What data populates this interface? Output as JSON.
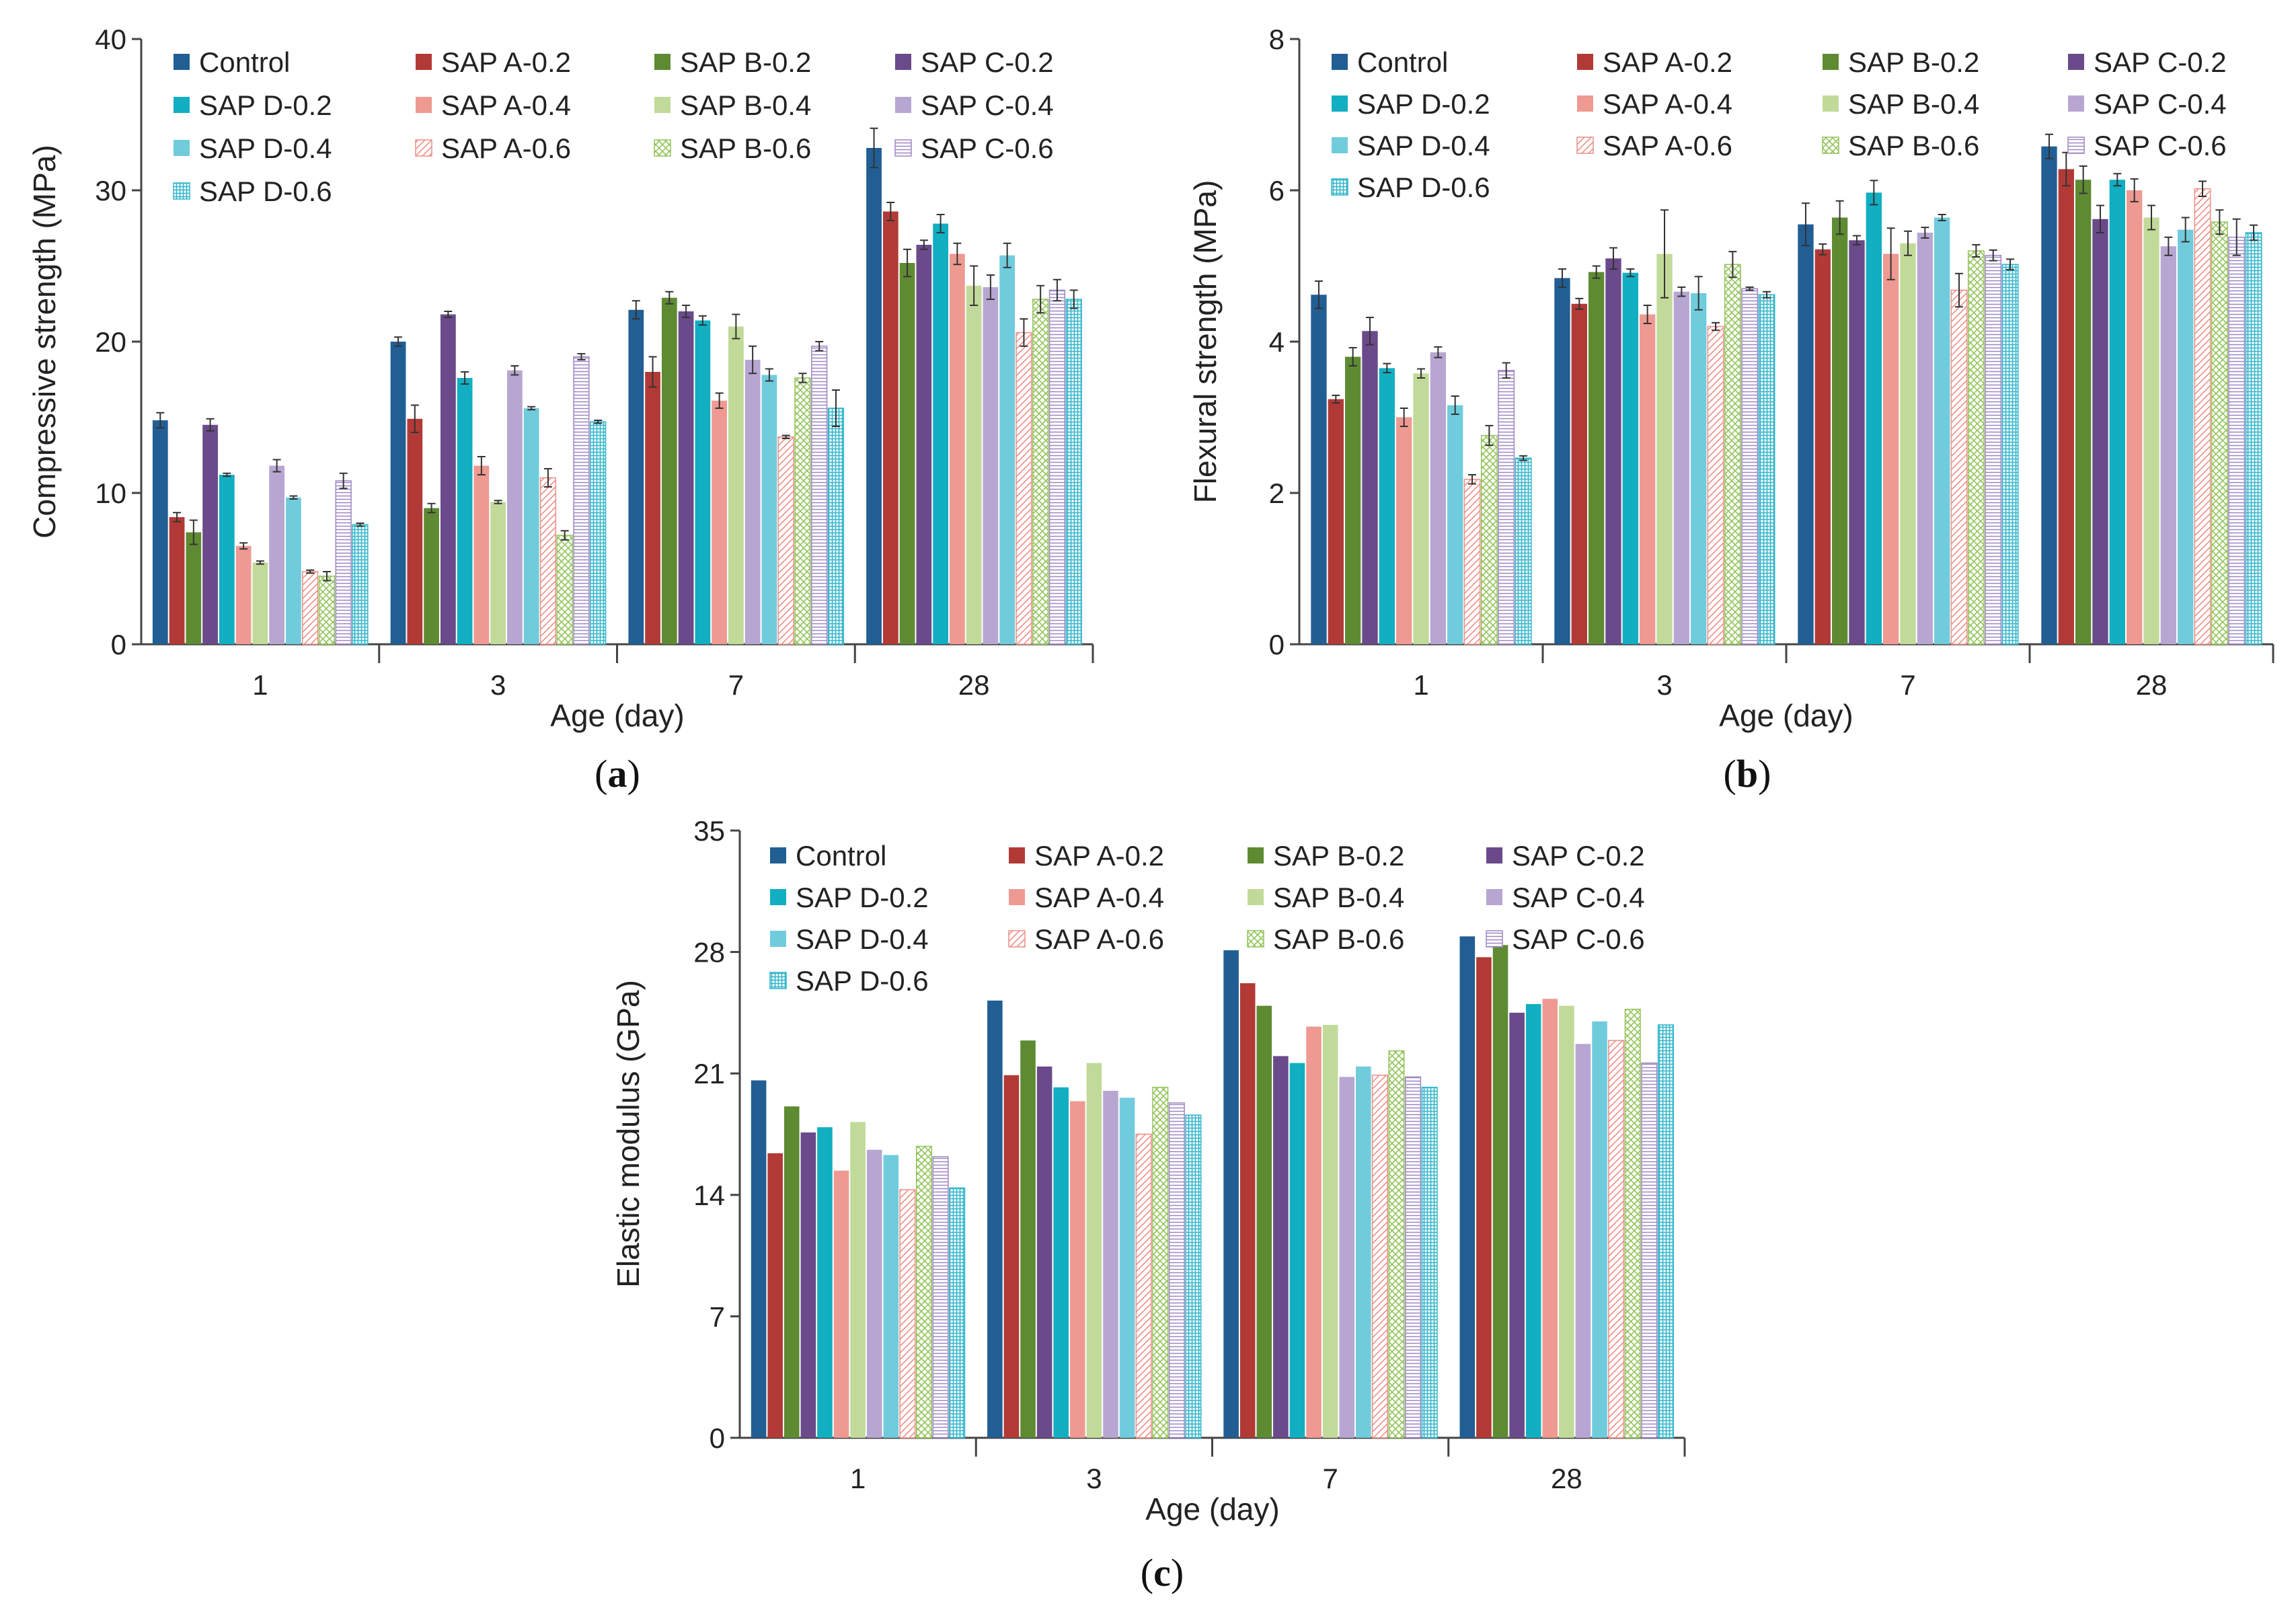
{
  "series_styles": [
    {
      "name": "Control",
      "color": "#215E94",
      "pattern": "solid"
    },
    {
      "name": "SAP A-0.2",
      "color": "#B23A36",
      "pattern": "solid"
    },
    {
      "name": "SAP B-0.2",
      "color": "#5E8B32",
      "pattern": "solid"
    },
    {
      "name": "SAP C-0.2",
      "color": "#6A4A8A",
      "pattern": "solid"
    },
    {
      "name": "SAP D-0.2",
      "color": "#12AEC2",
      "pattern": "solid"
    },
    {
      "name": "SAP A-0.4",
      "color": "#EE9A92",
      "pattern": "solid"
    },
    {
      "name": "SAP B-0.4",
      "color": "#C2DA99",
      "pattern": "solid"
    },
    {
      "name": "SAP C-0.4",
      "color": "#B8A6D2",
      "pattern": "solid"
    },
    {
      "name": "SAP D-0.4",
      "color": "#70CCDC",
      "pattern": "solid"
    },
    {
      "name": "SAP A-0.6",
      "color": "#EE8E86",
      "pattern": "diag"
    },
    {
      "name": "SAP B-0.6",
      "color": "#93C45A",
      "pattern": "cross"
    },
    {
      "name": "SAP C-0.6",
      "color": "#9E86C2",
      "pattern": "horiz"
    },
    {
      "name": "SAP D-0.6",
      "color": "#2FB5CA",
      "pattern": "grid"
    }
  ],
  "chart_data": [
    {
      "type": "bar",
      "caption": "a",
      "xlabel": "Age (day)",
      "ylabel": "Compressive strength (MPa)",
      "ylim": [
        0,
        40
      ],
      "yticks": [
        "0",
        "10",
        "20",
        "30",
        "40"
      ],
      "categories": [
        "1",
        "3",
        "7",
        "28"
      ],
      "series": [
        {
          "name": "Control",
          "values": [
            14.8,
            20.0,
            22.1,
            32.8
          ],
          "errors": [
            0.5,
            0.3,
            0.6,
            1.3
          ]
        },
        {
          "name": "SAP A-0.2",
          "values": [
            8.4,
            14.9,
            18.0,
            28.6
          ],
          "errors": [
            0.3,
            0.9,
            1.0,
            0.6
          ]
        },
        {
          "name": "SAP B-0.2",
          "values": [
            7.4,
            9.0,
            22.9,
            25.2
          ],
          "errors": [
            0.8,
            0.3,
            0.4,
            0.9
          ]
        },
        {
          "name": "SAP C-0.2",
          "values": [
            14.5,
            21.8,
            22.0,
            26.4
          ],
          "errors": [
            0.4,
            0.2,
            0.4,
            0.3
          ]
        },
        {
          "name": "SAP D-0.2",
          "values": [
            11.2,
            17.6,
            21.4,
            27.8
          ],
          "errors": [
            0.1,
            0.4,
            0.3,
            0.6
          ]
        },
        {
          "name": "SAP A-0.4",
          "values": [
            6.5,
            11.8,
            16.1,
            25.8
          ],
          "errors": [
            0.2,
            0.6,
            0.5,
            0.7
          ]
        },
        {
          "name": "SAP B-0.4",
          "values": [
            5.4,
            9.4,
            21.0,
            23.7
          ],
          "errors": [
            0.1,
            0.1,
            0.8,
            1.3
          ]
        },
        {
          "name": "SAP C-0.4",
          "values": [
            11.8,
            18.1,
            18.8,
            23.6
          ],
          "errors": [
            0.4,
            0.3,
            0.9,
            0.8
          ]
        },
        {
          "name": "SAP D-0.4",
          "values": [
            9.7,
            15.6,
            17.8,
            25.7
          ],
          "errors": [
            0.1,
            0.1,
            0.4,
            0.8
          ]
        },
        {
          "name": "SAP A-0.6",
          "values": [
            4.8,
            11.0,
            13.7,
            20.6
          ],
          "errors": [
            0.1,
            0.6,
            0.1,
            0.9
          ]
        },
        {
          "name": "SAP B-0.6",
          "values": [
            4.5,
            7.2,
            17.6,
            22.8
          ],
          "errors": [
            0.3,
            0.3,
            0.3,
            0.9
          ]
        },
        {
          "name": "SAP C-0.6",
          "values": [
            10.8,
            19.0,
            19.7,
            23.4
          ],
          "errors": [
            0.5,
            0.2,
            0.3,
            0.7
          ]
        },
        {
          "name": "SAP D-0.6",
          "values": [
            7.9,
            14.7,
            15.6,
            22.8
          ],
          "errors": [
            0.1,
            0.1,
            1.2,
            0.6
          ]
        }
      ]
    },
    {
      "type": "bar",
      "caption": "b",
      "xlabel": "Age (day)",
      "ylabel": "Flexural strength (MPa)",
      "ylim": [
        0,
        8
      ],
      "yticks": [
        "0",
        "2",
        "4",
        "6",
        "8"
      ],
      "categories": [
        "1",
        "3",
        "7",
        "28"
      ],
      "series": [
        {
          "name": "Control",
          "values": [
            4.62,
            4.84,
            5.55,
            6.58
          ],
          "errors": [
            0.18,
            0.12,
            0.28,
            0.16
          ]
        },
        {
          "name": "SAP A-0.2",
          "values": [
            3.24,
            4.5,
            5.22,
            6.28
          ],
          "errors": [
            0.05,
            0.07,
            0.07,
            0.22
          ]
        },
        {
          "name": "SAP B-0.2",
          "values": [
            3.8,
            4.92,
            5.64,
            6.14
          ],
          "errors": [
            0.12,
            0.08,
            0.22,
            0.18
          ]
        },
        {
          "name": "SAP C-0.2",
          "values": [
            4.14,
            5.1,
            5.34,
            5.62
          ],
          "errors": [
            0.18,
            0.14,
            0.06,
            0.18
          ]
        },
        {
          "name": "SAP D-0.2",
          "values": [
            3.65,
            4.91,
            5.97,
            6.14
          ],
          "errors": [
            0.06,
            0.05,
            0.16,
            0.08
          ]
        },
        {
          "name": "SAP A-0.4",
          "values": [
            3.0,
            4.36,
            5.16,
            6.0
          ],
          "errors": [
            0.12,
            0.12,
            0.34,
            0.15
          ]
        },
        {
          "name": "SAP B-0.4",
          "values": [
            3.58,
            5.16,
            5.3,
            5.64
          ],
          "errors": [
            0.06,
            0.58,
            0.16,
            0.16
          ]
        },
        {
          "name": "SAP C-0.4",
          "values": [
            3.86,
            4.66,
            5.44,
            5.26
          ],
          "errors": [
            0.07,
            0.06,
            0.07,
            0.12
          ]
        },
        {
          "name": "SAP D-0.4",
          "values": [
            3.16,
            4.64,
            5.64,
            5.48
          ],
          "errors": [
            0.12,
            0.22,
            0.04,
            0.16
          ]
        },
        {
          "name": "SAP A-0.6",
          "values": [
            2.18,
            4.2,
            4.68,
            6.02
          ],
          "errors": [
            0.06,
            0.05,
            0.22,
            0.1
          ]
        },
        {
          "name": "SAP B-0.6",
          "values": [
            2.76,
            5.02,
            5.2,
            5.58
          ],
          "errors": [
            0.13,
            0.17,
            0.08,
            0.16
          ]
        },
        {
          "name": "SAP C-0.6",
          "values": [
            3.62,
            4.7,
            5.14,
            5.38
          ],
          "errors": [
            0.1,
            0.02,
            0.07,
            0.24
          ]
        },
        {
          "name": "SAP D-0.6",
          "values": [
            2.46,
            4.62,
            5.02,
            5.44
          ],
          "errors": [
            0.03,
            0.04,
            0.07,
            0.1
          ]
        }
      ]
    },
    {
      "type": "bar",
      "caption": "c",
      "xlabel": "Age (day)",
      "ylabel": "Elastic modulus (GPa)",
      "ylim": [
        0,
        35
      ],
      "yticks": [
        "0",
        "7",
        "14",
        "21",
        "28",
        "35"
      ],
      "categories": [
        "1",
        "3",
        "7",
        "28"
      ],
      "series": [
        {
          "name": "Control",
          "values": [
            20.6,
            25.2,
            28.1,
            28.9
          ]
        },
        {
          "name": "SAP A-0.2",
          "values": [
            16.4,
            20.9,
            26.2,
            27.7
          ]
        },
        {
          "name": "SAP B-0.2",
          "values": [
            19.1,
            22.9,
            24.9,
            28.4
          ]
        },
        {
          "name": "SAP C-0.2",
          "values": [
            17.6,
            21.4,
            22.0,
            24.5
          ]
        },
        {
          "name": "SAP D-0.2",
          "values": [
            17.9,
            20.2,
            21.6,
            25.0
          ]
        },
        {
          "name": "SAP A-0.4",
          "values": [
            15.4,
            19.4,
            23.7,
            25.3
          ]
        },
        {
          "name": "SAP B-0.4",
          "values": [
            18.2,
            21.6,
            23.8,
            24.9
          ]
        },
        {
          "name": "SAP C-0.4",
          "values": [
            16.6,
            20.0,
            20.8,
            22.7
          ]
        },
        {
          "name": "SAP D-0.4",
          "values": [
            16.3,
            19.6,
            21.4,
            24.0
          ]
        },
        {
          "name": "SAP A-0.6",
          "values": [
            14.3,
            17.5,
            20.9,
            22.9
          ]
        },
        {
          "name": "SAP B-0.6",
          "values": [
            16.8,
            20.2,
            22.3,
            24.7
          ]
        },
        {
          "name": "SAP C-0.6",
          "values": [
            16.2,
            19.3,
            20.8,
            21.6
          ]
        },
        {
          "name": "SAP D-0.6",
          "values": [
            14.4,
            18.6,
            20.2,
            23.8
          ]
        }
      ]
    }
  ]
}
